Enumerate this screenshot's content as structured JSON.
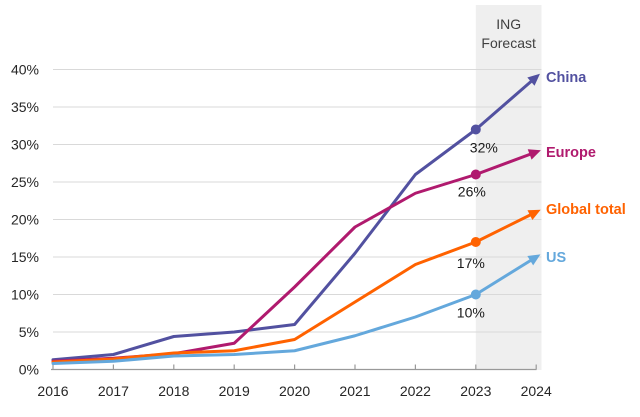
{
  "page": {
    "background_color": "#ffffff"
  },
  "chart_data": {
    "type": "line",
    "title": "",
    "xlabel": "",
    "ylabel": "",
    "x": [
      2016,
      2017,
      2018,
      2019,
      2020,
      2021,
      2022,
      2023,
      2024
    ],
    "x_tick_labels": [
      "2016",
      "2017",
      "2018",
      "2019",
      "2020",
      "2021",
      "2022",
      "2023",
      "2024"
    ],
    "ylim": [
      0,
      40
    ],
    "y_ticks": [
      0,
      5,
      10,
      15,
      20,
      25,
      30,
      35,
      40
    ],
    "y_tick_labels": [
      "0%",
      "5%",
      "10%",
      "15%",
      "20%",
      "25%",
      "30%",
      "35%",
      "40%"
    ],
    "grid": true,
    "gridline_color": "#d9d9d9",
    "axis_color": "#999999",
    "tick_label_color": "#262626",
    "annotation_text_color": "#1a1a1a",
    "legend_position": "right-of-line-ends",
    "marker_at_2023": "filled-circle",
    "marker_at_2024": "arrowhead",
    "forecast_band": {
      "label_lines": [
        "ING",
        "Forecast"
      ],
      "start_x": 2023,
      "end_x": 2024,
      "band_color": "#efefef",
      "label_color": "#404040"
    },
    "series": [
      {
        "name": "China",
        "color": "#5251a0",
        "values": [
          1.3,
          2,
          4.4,
          5,
          6,
          15.5,
          26,
          32,
          39
        ],
        "annotation": {
          "x": 2023,
          "text": "32%"
        }
      },
      {
        "name": "Europe",
        "color": "#b01a6e",
        "values": [
          1.1,
          1.5,
          2.1,
          3.5,
          11,
          19,
          23.5,
          26,
          29
        ],
        "annotation": {
          "x": 2023,
          "text": "26%"
        }
      },
      {
        "name": "Global total",
        "color": "#ff6200",
        "values": [
          1,
          1.4,
          2.2,
          2.5,
          4,
          9,
          14,
          17,
          21
        ],
        "annotation": {
          "x": 2023,
          "text": "17%"
        }
      },
      {
        "name": "US",
        "color": "#64a8dc",
        "values": [
          0.8,
          1.1,
          1.8,
          2,
          2.5,
          4.5,
          7,
          10,
          15
        ],
        "annotation": {
          "x": 2023,
          "text": "10%"
        }
      }
    ]
  }
}
